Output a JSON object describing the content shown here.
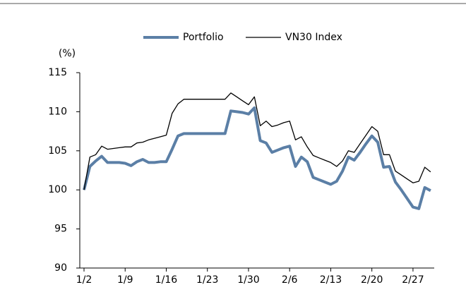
{
  "chart_data": {
    "type": "line",
    "y_label": "(%)",
    "categories": [
      "1/2",
      null,
      null,
      null,
      null,
      null,
      null,
      "1/9",
      null,
      null,
      null,
      null,
      null,
      null,
      "1/16",
      null,
      null,
      null,
      null,
      null,
      null,
      "1/23",
      null,
      null,
      null,
      null,
      null,
      null,
      "1/30",
      null,
      null,
      null,
      null,
      null,
      null,
      "2/6",
      null,
      null,
      null,
      null,
      null,
      null,
      "2/13",
      null,
      null,
      null,
      null,
      null,
      null,
      "2/20",
      null,
      null,
      null,
      null,
      null,
      null,
      "2/27",
      null,
      null,
      null
    ],
    "series": [
      {
        "name": "Portfolio",
        "color": "#5b7fa6",
        "values": [
          100,
          103,
          103.7,
          104.3,
          103.5,
          103.5,
          103.5,
          103.4,
          103.1,
          103.6,
          103.9,
          103.5,
          103.5,
          103.6,
          103.6,
          105.2,
          106.9,
          107.2,
          107.2,
          107.2,
          107.2,
          107.2,
          107.2,
          107.2,
          107.2,
          110.1,
          110,
          109.9,
          109.7,
          110.5,
          106.3,
          106,
          104.8,
          105.1,
          105.4,
          105.6,
          103,
          104.2,
          103.6,
          101.6,
          101.3,
          101,
          100.7,
          101.1,
          102.4,
          104.2,
          103.8,
          104.8,
          105.9,
          106.9,
          106.1,
          102.9,
          103,
          101,
          100,
          98.9,
          97.8,
          97.6,
          100.3,
          99.9
        ]
      },
      {
        "name": "VN30 Index",
        "color": "#000000",
        "values": [
          100,
          104.2,
          104.5,
          105.6,
          105.2,
          105.3,
          105.4,
          105.5,
          105.5,
          106,
          106.1,
          106.4,
          106.6,
          106.8,
          107,
          109.8,
          111,
          111.6,
          111.6,
          111.6,
          111.6,
          111.6,
          111.6,
          111.6,
          111.6,
          112.4,
          111.9,
          111.4,
          110.9,
          111.9,
          108.2,
          108.8,
          108.1,
          108.3,
          108.6,
          108.8,
          106.4,
          106.8,
          105.5,
          104.4,
          104.1,
          103.8,
          103.5,
          103,
          103.7,
          105,
          104.8,
          105.9,
          107,
          108.1,
          107.5,
          104.5,
          104.5,
          102.4,
          101.9,
          101.4,
          100.9,
          101.1,
          102.9,
          102.3
        ]
      }
    ],
    "ylim": [
      90,
      115
    ],
    "yticks": [
      90,
      95,
      100,
      105,
      110,
      115
    ],
    "legend": "top"
  }
}
